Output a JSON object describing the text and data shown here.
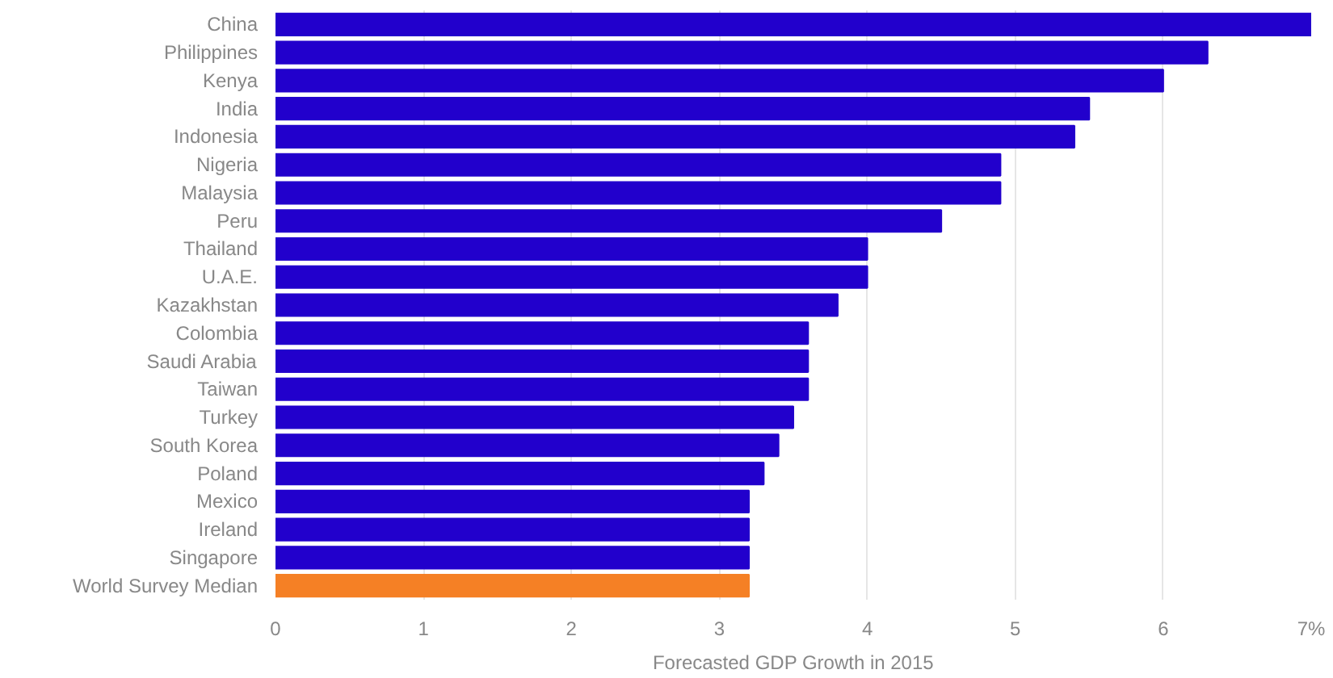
{
  "chart_data": {
    "type": "bar",
    "orientation": "horizontal",
    "xlabel": "Forecasted GDP Growth in 2015",
    "categories": [
      "China",
      "Philippines",
      "Kenya",
      "India",
      "Indonesia",
      "Nigeria",
      "Malaysia",
      "Peru",
      "Thailand",
      "U.A.E.",
      "Kazakhstan",
      "Colombia",
      "Saudi Arabia",
      "Taiwan",
      "Turkey",
      "South Korea",
      "Poland",
      "Mexico",
      "Ireland",
      "Singapore",
      "World Survey Median"
    ],
    "values": [
      7.0,
      6.3,
      6.0,
      5.5,
      5.4,
      4.9,
      4.9,
      4.5,
      4.0,
      4.0,
      3.8,
      3.6,
      3.6,
      3.6,
      3.5,
      3.4,
      3.3,
      3.2,
      3.2,
      3.2,
      3.2
    ],
    "colors": [
      "#2200cc",
      "#2200cc",
      "#2200cc",
      "#2200cc",
      "#2200cc",
      "#2200cc",
      "#2200cc",
      "#2200cc",
      "#2200cc",
      "#2200cc",
      "#2200cc",
      "#2200cc",
      "#2200cc",
      "#2200cc",
      "#2200cc",
      "#2200cc",
      "#2200cc",
      "#2200cc",
      "#2200cc",
      "#2200cc",
      "#f58025"
    ],
    "xlim": [
      0,
      7
    ],
    "xticks": [
      0,
      1,
      2,
      3,
      4,
      5,
      6,
      {
        "value": 7,
        "label": "7%"
      }
    ],
    "grid": "x"
  }
}
